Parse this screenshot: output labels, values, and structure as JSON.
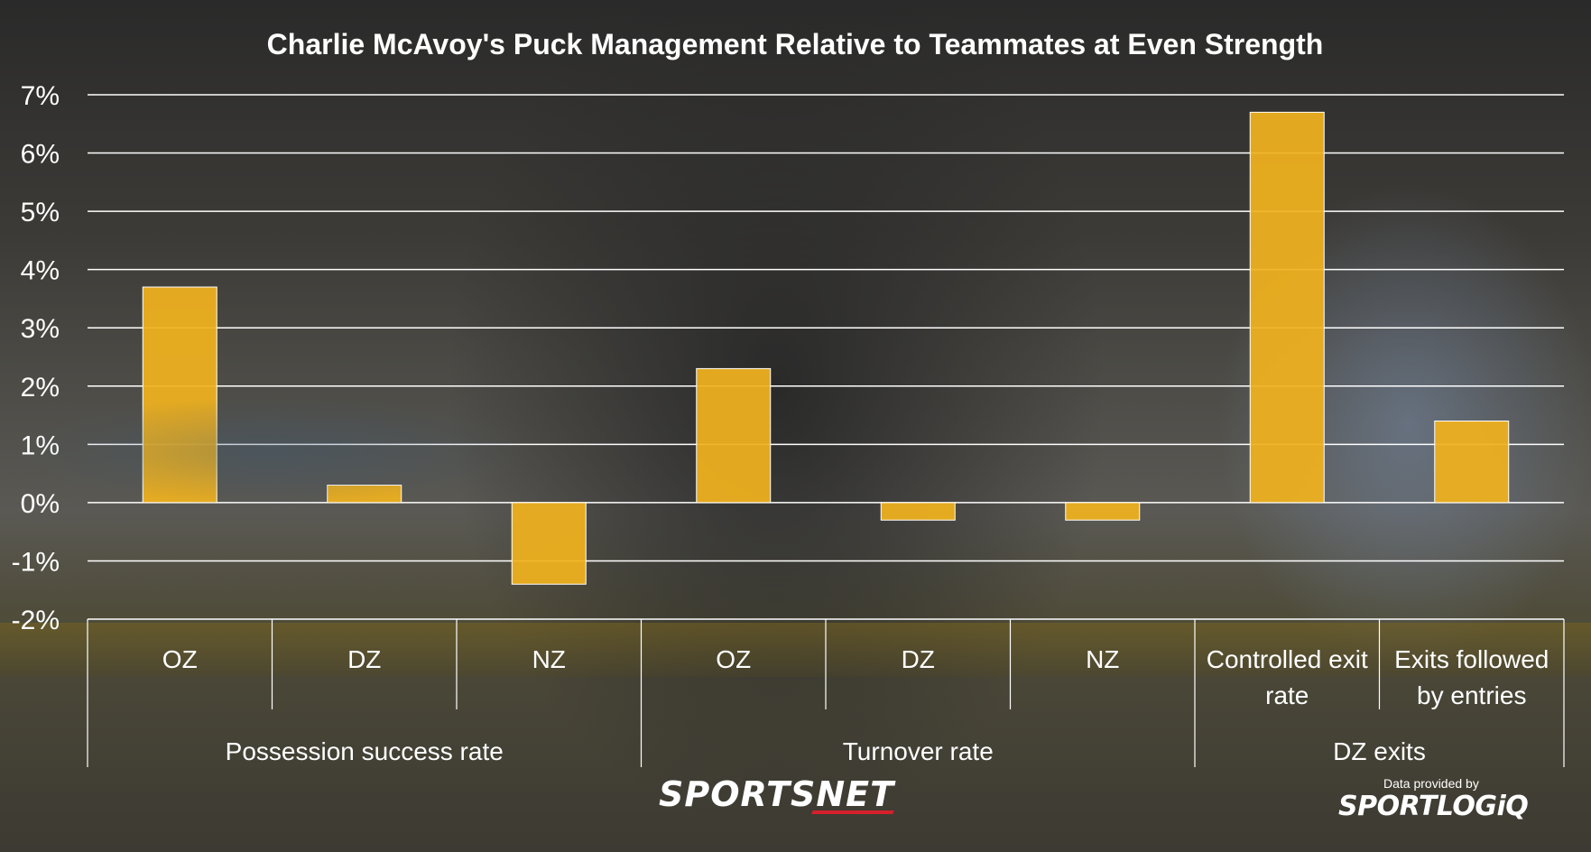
{
  "chart_data": {
    "type": "bar",
    "title": "Charlie McAvoy's Puck Management Relative to Teammates at Even Strength",
    "ylim": [
      -2,
      7
    ],
    "yticks": [
      "-2%",
      "-1%",
      "0%",
      "1%",
      "2%",
      "3%",
      "4%",
      "5%",
      "6%",
      "7%"
    ],
    "grid": true,
    "categories": [
      "OZ",
      "DZ",
      "NZ",
      "OZ",
      "DZ",
      "NZ",
      "Controlled exit rate",
      "Exits followed by entries"
    ],
    "category_lines": [
      [
        "OZ"
      ],
      [
        "DZ"
      ],
      [
        "NZ"
      ],
      [
        "OZ"
      ],
      [
        "DZ"
      ],
      [
        "NZ"
      ],
      [
        "Controlled exit",
        "rate"
      ],
      [
        "Exits followed",
        "by entries"
      ]
    ],
    "groups": [
      {
        "label": "Possession success rate",
        "span": 3
      },
      {
        "label": "Turnover rate",
        "span": 3
      },
      {
        "label": "DZ exits",
        "span": 2
      }
    ],
    "values": [
      3.7,
      0.3,
      -1.4,
      2.3,
      -0.3,
      -0.3,
      6.7,
      1.4
    ],
    "bar_color": "#f0b21e"
  },
  "branding": {
    "broadcaster": "SPORTSNET",
    "provider_note": "Data provided by",
    "provider": "SPORTLOGiQ"
  }
}
